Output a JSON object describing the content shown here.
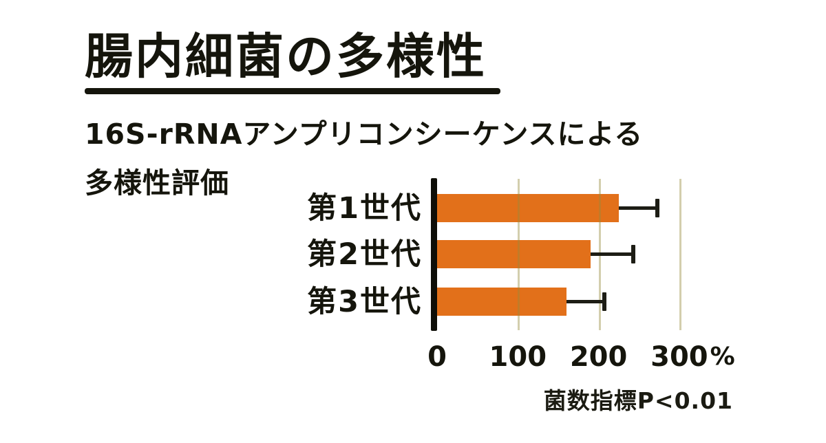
{
  "header": {
    "title": "腸内細菌の多様性",
    "subtitle_line1": "16S-rRNAアンプリコンシーケンスによる",
    "subtitle_line2": "多様性評価"
  },
  "chart_data": {
    "type": "bar",
    "orientation": "horizontal",
    "categories": [
      "第1世代",
      "第2世代",
      "第3世代"
    ],
    "values": [
      225,
      190,
      160
    ],
    "errors_plus": [
      48,
      53,
      47
    ],
    "unit": "%",
    "xticks": [
      0,
      100,
      200,
      300
    ],
    "xtick_labels": [
      "0",
      "100",
      "200",
      "300"
    ],
    "xlim": [
      0,
      390
    ],
    "grid": "on",
    "legend": "none",
    "note": "菌数指標P<0.01",
    "title": "腸内細菌の多様性",
    "subtitle": "16S-rRNAアンプリコンシーケンスによる多様性評価",
    "bar_color": "#e2701a",
    "axis_color": "#0e0e08",
    "error_bar_color": "#1d1d15",
    "gridline_color": "#cbc493",
    "text_color": "#15150c",
    "background_color": "#ffffff"
  }
}
